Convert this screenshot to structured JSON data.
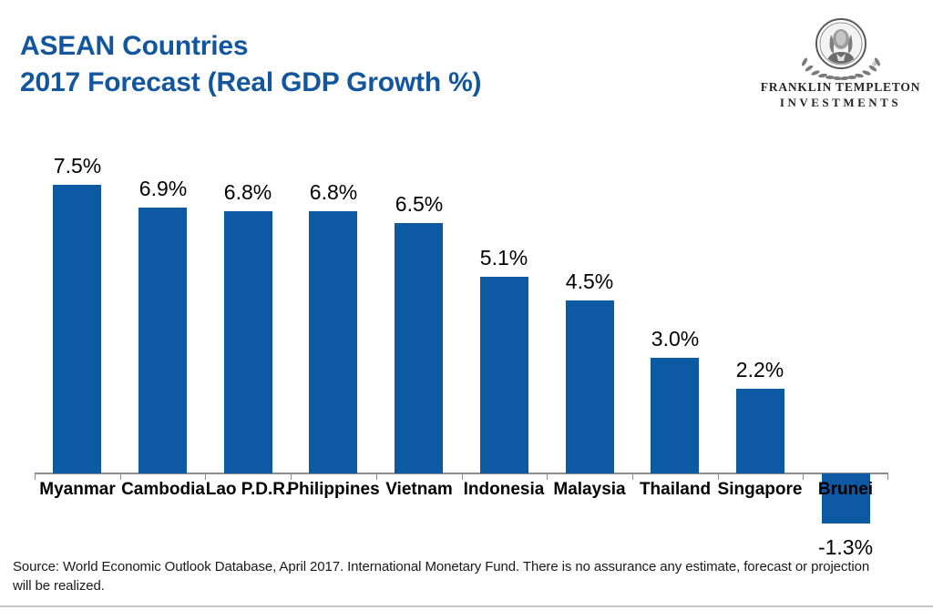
{
  "header": {
    "title_line1": "ASEAN Countries",
    "title_line2": "2017 Forecast (Real GDP Growth %)"
  },
  "logo": {
    "icon": "benjamin-franklin-medallion",
    "company_line1": "FRANKLIN TEMPLETON",
    "company_line2": "INVESTMENTS",
    "registered_mark": "®"
  },
  "chart_data": {
    "type": "bar",
    "title": "ASEAN Countries 2017 Forecast (Real GDP Growth %)",
    "categories": [
      "Myanmar",
      "Cambodia",
      "Lao P.D.R.",
      "Philippines",
      "Vietnam",
      "Indonesia",
      "Malaysia",
      "Thailand",
      "Singapore",
      "Brunei"
    ],
    "values": [
      7.5,
      6.9,
      6.8,
      6.8,
      6.5,
      5.1,
      4.5,
      3.0,
      2.2,
      -1.3
    ],
    "value_labels": [
      "7.5%",
      "6.9%",
      "6.8%",
      "6.8%",
      "6.5%",
      "5.1%",
      "4.5%",
      "3.0%",
      "2.2%",
      "-1.3%"
    ],
    "unit": "%",
    "xlabel": "",
    "ylabel": "",
    "ylim": [
      -1.5,
      8.0
    ],
    "grid": false,
    "legend": false,
    "data_labels": "outside-end"
  },
  "colors": {
    "title_blue": "#12569F",
    "bar_blue": "#0E59A4",
    "axis_gray": "#8C8C8C",
    "label_black": "#000000",
    "source_text": "#1A1A1A",
    "bottom_rule_gray": "#C6C6C6",
    "logo_gray": "#3A3A3A"
  },
  "footer": {
    "source_line1": "Source: World Economic Outlook Database, April 2017. International Monetary Fund. There is no assurance any estimate, forecast or projection",
    "source_line2": "will be realized."
  }
}
